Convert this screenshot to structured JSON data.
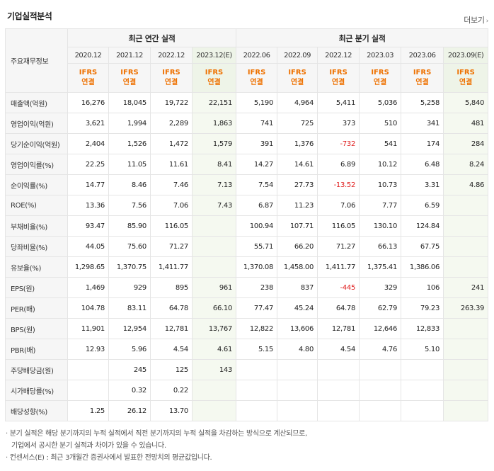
{
  "header": {
    "title": "기업실적분석",
    "more_label": "더보기"
  },
  "table": {
    "corner_label": "주요재무정보",
    "groups": {
      "annual": "최근 연간 실적",
      "quarterly": "최근 분기 실적"
    },
    "periods": [
      "2020.12",
      "2021.12",
      "2022.12",
      "2023.12(E)",
      "2022.06",
      "2022.09",
      "2022.12",
      "2023.03",
      "2023.06",
      "2023.09(E)"
    ],
    "ifrs_top": "IFRS",
    "ifrs_bottom": "연결",
    "rows": [
      {
        "label": "매출액(억원)",
        "values": [
          "16,276",
          "18,045",
          "19,722",
          "22,151",
          "5,190",
          "4,964",
          "5,411",
          "5,036",
          "5,258",
          "5,840"
        ]
      },
      {
        "label": "영업이익(억원)",
        "values": [
          "3,621",
          "1,994",
          "2,289",
          "1,863",
          "741",
          "725",
          "373",
          "510",
          "341",
          "481"
        ]
      },
      {
        "label": "당기순이익(억원)",
        "values": [
          "2,404",
          "1,526",
          "1,472",
          "1,579",
          "391",
          "1,376",
          "-732",
          "541",
          "174",
          "284"
        ]
      },
      {
        "label": "영업이익률(%)",
        "values": [
          "22.25",
          "11.05",
          "11.61",
          "8.41",
          "14.27",
          "14.61",
          "6.89",
          "10.12",
          "6.48",
          "8.24"
        ]
      },
      {
        "label": "순이익률(%)",
        "values": [
          "14.77",
          "8.46",
          "7.46",
          "7.13",
          "7.54",
          "27.73",
          "-13.52",
          "10.73",
          "3.31",
          "4.86"
        ]
      },
      {
        "label": "ROE(%)",
        "values": [
          "13.36",
          "7.56",
          "7.06",
          "7.43",
          "6.87",
          "11.23",
          "7.06",
          "7.77",
          "6.59",
          ""
        ]
      },
      {
        "label": "부채비율(%)",
        "values": [
          "93.47",
          "85.90",
          "116.05",
          "",
          "100.94",
          "107.71",
          "116.05",
          "130.10",
          "124.84",
          ""
        ]
      },
      {
        "label": "당좌비율(%)",
        "values": [
          "44.05",
          "75.60",
          "71.27",
          "",
          "55.71",
          "66.20",
          "71.27",
          "66.13",
          "67.75",
          ""
        ]
      },
      {
        "label": "유보율(%)",
        "values": [
          "1,298.65",
          "1,370.75",
          "1,411.77",
          "",
          "1,370.08",
          "1,458.00",
          "1,411.77",
          "1,375.41",
          "1,386.06",
          ""
        ]
      },
      {
        "label": "EPS(원)",
        "values": [
          "1,469",
          "929",
          "895",
          "961",
          "238",
          "837",
          "-445",
          "329",
          "106",
          "241"
        ]
      },
      {
        "label": "PER(배)",
        "values": [
          "104.78",
          "83.11",
          "64.78",
          "66.10",
          "77.47",
          "45.24",
          "64.78",
          "62.79",
          "79.23",
          "263.39"
        ]
      },
      {
        "label": "BPS(원)",
        "values": [
          "11,901",
          "12,954",
          "12,781",
          "13,767",
          "12,822",
          "13,606",
          "12,781",
          "12,646",
          "12,833",
          ""
        ]
      },
      {
        "label": "PBR(배)",
        "values": [
          "12.93",
          "5.96",
          "4.54",
          "4.61",
          "5.15",
          "4.80",
          "4.54",
          "4.76",
          "5.10",
          ""
        ]
      },
      {
        "label": "주당배당금(원)",
        "values": [
          "",
          "245",
          "125",
          "143",
          "",
          "",
          "",
          "",
          "",
          ""
        ]
      },
      {
        "label": "시가배당률(%)",
        "values": [
          "",
          "0.32",
          "0.22",
          "",
          "",
          "",
          "",
          "",
          "",
          ""
        ]
      },
      {
        "label": "배당성향(%)",
        "values": [
          "1.25",
          "26.12",
          "13.70",
          "",
          "",
          "",
          "",
          "",
          "",
          ""
        ]
      }
    ]
  },
  "notes": {
    "line1": "· 분기 실적은 해당 분기까지의 누적 실적에서 직전 분기까지의 누적 실적을 차감하는 방식으로 계산되므로,",
    "line2": "기업에서 공시한 분기 실적과 차이가 있을 수 있습니다.",
    "line3": "· 컨센서스(E) : 최근 3개월간 증권사에서 발표한 전망치의 평균값입니다."
  },
  "colors": {
    "ifrs": "#ee7100",
    "negative": "#e02020",
    "estimate_bg": "#f5f9f0"
  }
}
